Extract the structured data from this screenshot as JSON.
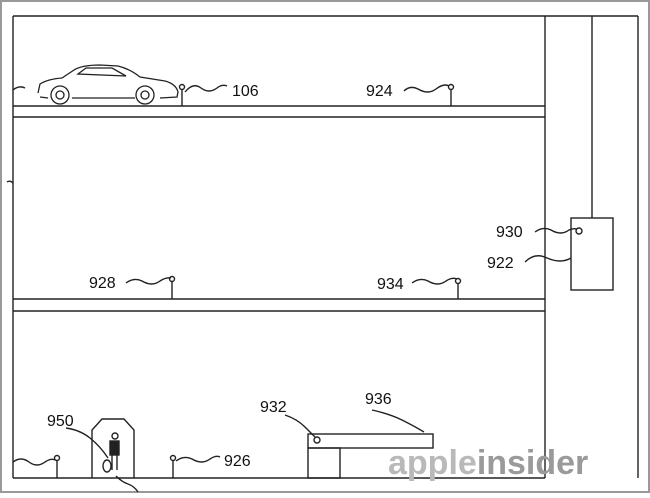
{
  "labels": {
    "ref_106": "106",
    "ref_924": "924",
    "ref_928": "928",
    "ref_934": "934",
    "ref_930": "930",
    "ref_922": "922",
    "ref_932": "932",
    "ref_936": "936",
    "ref_950": "950",
    "ref_926": "926"
  },
  "watermark": {
    "part1": "apple",
    "part2": "insider"
  },
  "colors": {
    "line": "#222222",
    "frame": "#999999",
    "watermark_light": "#b9b9b9",
    "watermark_dark": "#9a9a9a"
  },
  "icons": [
    "car-icon",
    "person-icon",
    "bollard-icon",
    "sensor-icon"
  ]
}
